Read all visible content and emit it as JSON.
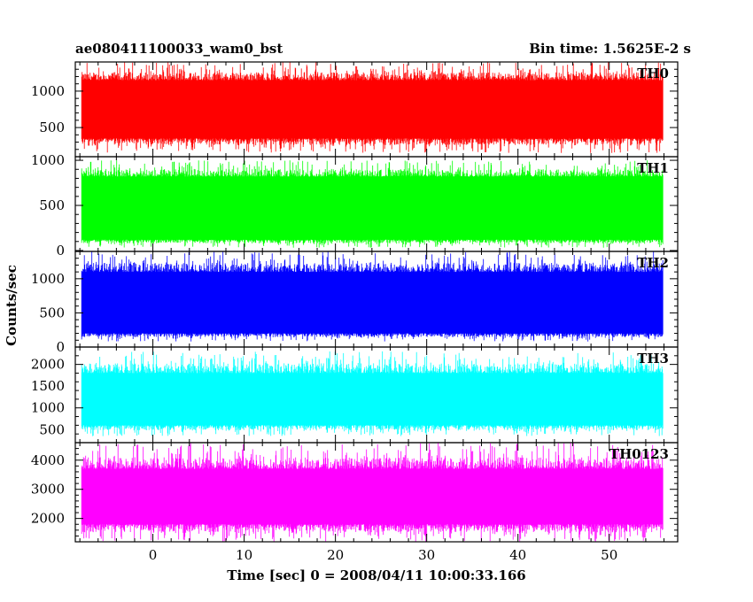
{
  "chart_data": {
    "type": "line",
    "title": "ae080411100033_wam0_bst",
    "subtitle": "Bin time: 1.5625E-2 s",
    "xlabel": "Time [sec] 0 = 2008/04/11 10:00:33.166",
    "ylabel": "Counts/sec",
    "xlim": [
      -8.5,
      57.5
    ],
    "x_ticks": [
      0,
      10,
      20,
      30,
      40,
      50
    ],
    "x_range_data": [
      -7.8,
      55.9
    ],
    "grid": false,
    "series": [
      {
        "name": "TH0",
        "color": "#ff0000",
        "ylim": [
          100,
          1400
        ],
        "y_ticks": [
          500,
          1000
        ],
        "band": {
          "low": 350,
          "high": 1150
        },
        "extremes": {
          "min": 150,
          "max": 1400
        }
      },
      {
        "name": "TH1",
        "color": "#00ff00",
        "ylim": [
          -10,
          1040
        ],
        "y_ticks": [
          0,
          500,
          1000
        ],
        "band": {
          "low": 120,
          "high": 820
        },
        "extremes": {
          "min": 30,
          "max": 1000
        }
      },
      {
        "name": "TH2",
        "color": "#0000ff",
        "ylim": [
          0,
          1400
        ],
        "y_ticks": [
          0,
          500,
          1000
        ],
        "band": {
          "low": 200,
          "high": 1100
        },
        "extremes": {
          "min": 80,
          "max": 1400
        }
      },
      {
        "name": "TH3",
        "color": "#00ffff",
        "ylim": [
          200,
          2400
        ],
        "y_ticks": [
          500,
          1000,
          1500,
          2000
        ],
        "band": {
          "low": 600,
          "high": 1800
        },
        "extremes": {
          "min": 350,
          "max": 2300
        }
      },
      {
        "name": "TH0123",
        "color": "#ff00ff",
        "ylim": [
          1200,
          4600
        ],
        "y_ticks": [
          2000,
          3000,
          4000
        ],
        "band": {
          "low": 1800,
          "high": 3700
        },
        "extremes": {
          "min": 1200,
          "max": 4600
        }
      }
    ]
  }
}
